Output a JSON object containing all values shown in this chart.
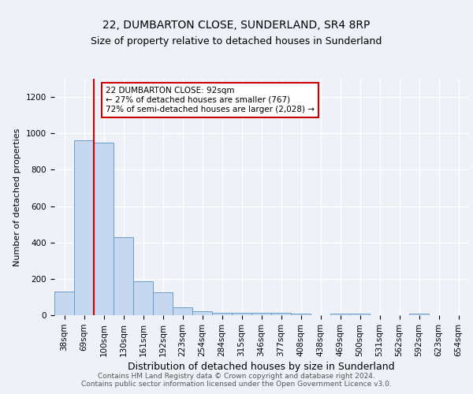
{
  "title": "22, DUMBARTON CLOSE, SUNDERLAND, SR4 8RP",
  "subtitle": "Size of property relative to detached houses in Sunderland",
  "xlabel": "Distribution of detached houses by size in Sunderland",
  "ylabel": "Number of detached properties",
  "categories": [
    "38sqm",
    "69sqm",
    "100sqm",
    "130sqm",
    "161sqm",
    "192sqm",
    "223sqm",
    "254sqm",
    "284sqm",
    "315sqm",
    "346sqm",
    "377sqm",
    "408sqm",
    "438sqm",
    "469sqm",
    "500sqm",
    "531sqm",
    "562sqm",
    "592sqm",
    "623sqm",
    "654sqm"
  ],
  "values": [
    128,
    960,
    950,
    430,
    185,
    125,
    42,
    20,
    12,
    14,
    14,
    14,
    8,
    0,
    8,
    8,
    0,
    0,
    8,
    0,
    0
  ],
  "bar_color": "#c5d8f0",
  "bar_edge_color": "#6b9dc8",
  "bar_edge_width": 0.7,
  "red_line_x": 1.5,
  "annotation_text": "22 DUMBARTON CLOSE: 92sqm\n← 27% of detached houses are smaller (767)\n72% of semi-detached houses are larger (2,028) →",
  "annotation_box_color": "white",
  "annotation_box_edge_color": "#cc0000",
  "ylim": [
    0,
    1300
  ],
  "yticks": [
    0,
    200,
    400,
    600,
    800,
    1000,
    1200
  ],
  "bg_color": "#eef2f8",
  "plot_bg_color": "#eef2f8",
  "grid_color": "#ffffff",
  "footer": "Contains HM Land Registry data © Crown copyright and database right 2024.\nContains public sector information licensed under the Open Government Licence v3.0.",
  "title_fontsize": 10,
  "subtitle_fontsize": 9,
  "xlabel_fontsize": 9,
  "ylabel_fontsize": 8,
  "tick_fontsize": 7.5,
  "footer_fontsize": 6.5,
  "annot_fontsize": 7.5
}
